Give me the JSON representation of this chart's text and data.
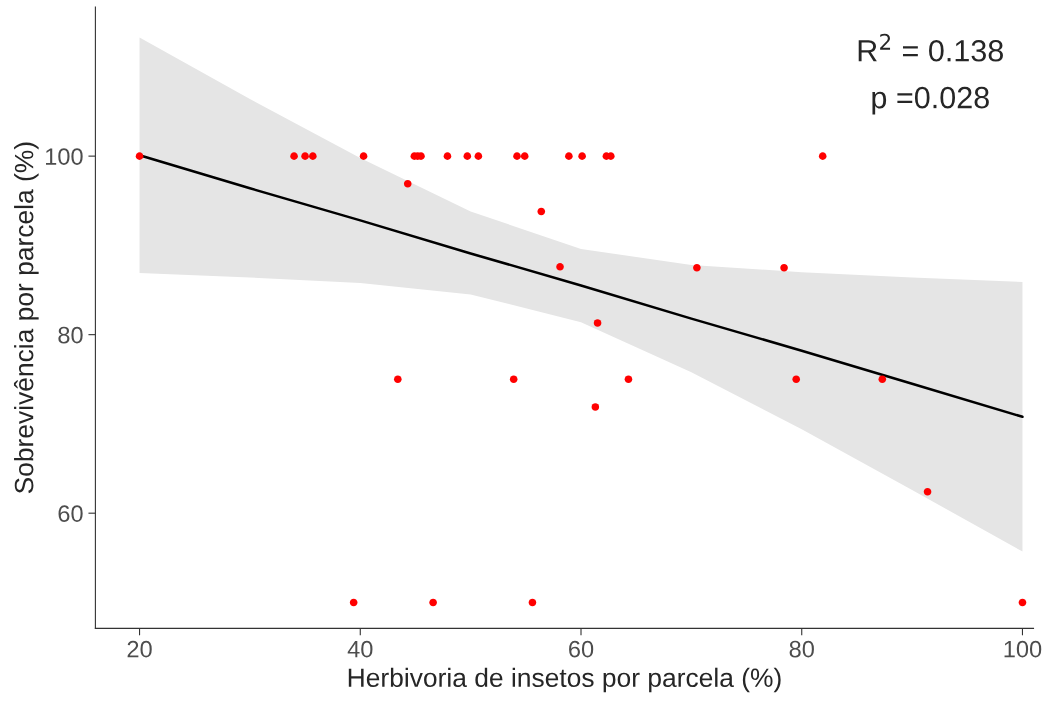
{
  "chart_data": {
    "type": "scatter",
    "xlabel": "Herbivoria de insetos por parcela (%)",
    "ylabel": "Sobrevivência por parcela (%)",
    "annotations": [
      "R$^{2}$ = 0.138",
      "p =0.028"
    ],
    "series": [
      {
        "type": "line",
        "color": "#000000",
        "x": [
          20,
          30,
          40,
          50,
          60,
          70,
          80,
          90,
          100
        ],
        "values": [
          100.1,
          96.4,
          92.8,
          89.1,
          85.5,
          81.8,
          78.2,
          74.5,
          70.8
        ],
        "lower": [
          86.9,
          86.4,
          85.8,
          84.5,
          81.4,
          75.8,
          69.4,
          62.6,
          55.7
        ],
        "upper": [
          113.3,
          106.4,
          99.8,
          93.8,
          89.6,
          87.8,
          87.0,
          86.4,
          85.9
        ]
      },
      {
        "marker": "circle",
        "color": "#ff0000",
        "x": [
          20,
          34,
          35,
          35.7,
          40.3,
          44.3,
          44.9,
          45.2,
          45.5,
          47.9,
          49.7,
          50.7,
          54.2,
          54.9,
          56.4,
          58.9,
          60.1,
          62.3,
          62.7,
          58.1,
          61.5,
          43.4,
          53.9,
          64.3,
          61.3,
          70.5,
          78.4,
          81.9,
          79.5,
          87.3,
          91.4,
          39.4,
          46.6,
          55.6,
          100
        ],
        "values": [
          100,
          100,
          100,
          100,
          100,
          96.9,
          100,
          100,
          100,
          100,
          100,
          100,
          100,
          100,
          93.8,
          100,
          100,
          100,
          100,
          87.6,
          81.3,
          75,
          75,
          75,
          71.9,
          87.5,
          87.5,
          100,
          75,
          75,
          62.4,
          50,
          50,
          50,
          50
        ]
      }
    ],
    "xlim": [
      16,
      101
    ],
    "ylim": [
      47.1,
      116.7
    ],
    "xticks": [
      20,
      40,
      60,
      80,
      100
    ],
    "yticks": [
      60,
      80,
      100
    ],
    "grid": false
  }
}
